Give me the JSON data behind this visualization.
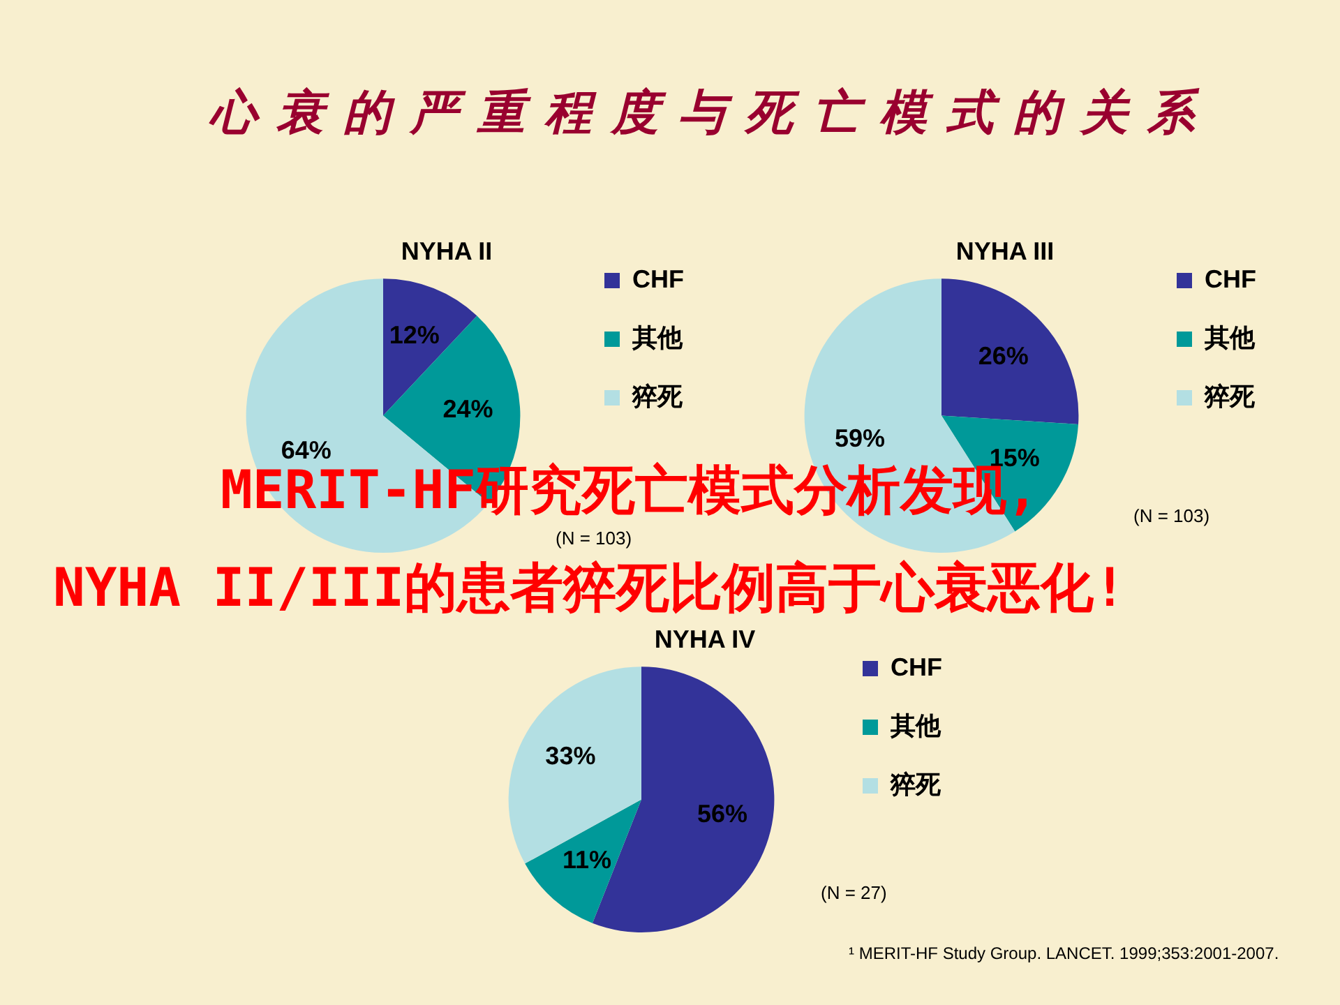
{
  "chart_data": [
    {
      "type": "other",
      "title": "心衰的严重程度与死亡模式的关系",
      "annotations": [
        "MERIT-HF研究死亡模式分析发现,",
        "NYHA II/III的患者猝死比例高于心衰恶化!",
        "¹ MERIT-HF Study Group. LANCET. 1999;353:2001-2007."
      ]
    },
    {
      "type": "pie",
      "title": "NYHA II",
      "categories": [
        "CHF",
        "其他",
        "猝死"
      ],
      "values": [
        12,
        24,
        64
      ],
      "value_labels": [
        "12%",
        "24%",
        "64%"
      ],
      "colors": [
        "#333399",
        "#009999",
        "#b3dfe3"
      ],
      "legend": "right",
      "annotations": [
        "(N = 103)"
      ]
    },
    {
      "type": "pie",
      "title": "NYHA III",
      "categories": [
        "CHF",
        "其他",
        "猝死"
      ],
      "values": [
        26,
        15,
        59
      ],
      "value_labels": [
        "26%",
        "15%",
        "59%"
      ],
      "colors": [
        "#333399",
        "#009999",
        "#b3dfe3"
      ],
      "legend": "right",
      "annotations": [
        "(N = 103)"
      ]
    },
    {
      "type": "pie",
      "title": "NYHA IV",
      "categories": [
        "CHF",
        "其他",
        "猝死"
      ],
      "values": [
        56,
        11,
        33
      ],
      "value_labels": [
        "56%",
        "11%",
        "33%"
      ],
      "colors": [
        "#333399",
        "#009999",
        "#b3dfe3"
      ],
      "legend": "right",
      "annotations": [
        "(N = 27)"
      ]
    }
  ]
}
